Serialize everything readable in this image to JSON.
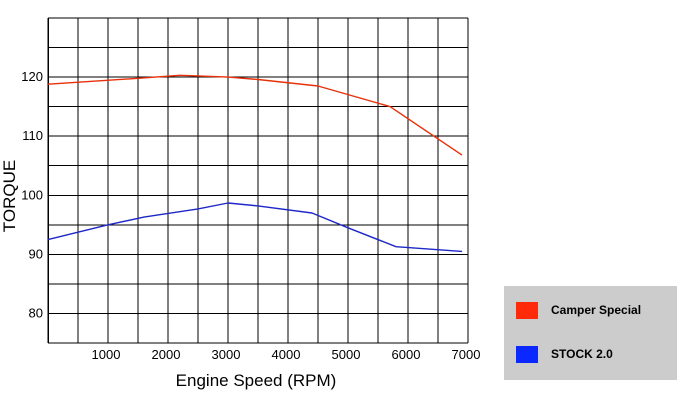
{
  "chart_data": {
    "type": "line",
    "xlabel": "Engine Speed (RPM)",
    "ylabel": "TORQUE",
    "xlim": [
      0,
      7000
    ],
    "ylim": [
      75,
      130
    ],
    "x_ticks": [
      1000,
      2000,
      3000,
      4000,
      5000,
      6000,
      7000
    ],
    "y_ticks": [
      80,
      90,
      100,
      110,
      120
    ],
    "grid": true,
    "legend_position": "bottom-right",
    "series": [
      {
        "name": "Camper Special",
        "color": "#e8300a",
        "x": [
          0,
          1500,
          2200,
          3000,
          3500,
          4500,
          5700,
          6900
        ],
        "values": [
          118.8,
          119.8,
          120.3,
          120.0,
          119.6,
          118.5,
          115.0,
          106.8
        ]
      },
      {
        "name": "STOCK 2.0",
        "color": "#1e28c8",
        "x": [
          0,
          1000,
          1600,
          2500,
          3000,
          3500,
          4400,
          5000,
          5800,
          6900
        ],
        "values": [
          92.5,
          95.0,
          96.3,
          97.7,
          98.7,
          98.2,
          97.0,
          94.5,
          91.3,
          90.5
        ]
      }
    ]
  }
}
